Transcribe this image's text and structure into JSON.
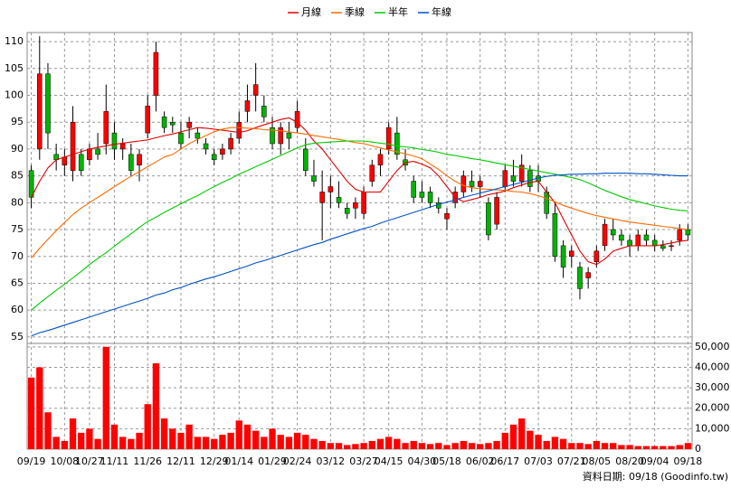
{
  "chart_data": {
    "type": "candlestick",
    "categories": [
      "09/19",
      null,
      null,
      null,
      "10/08",
      null,
      null,
      "10/27",
      null,
      null,
      "11/11",
      null,
      null,
      null,
      "11/26",
      null,
      null,
      null,
      "12/11",
      null,
      null,
      null,
      "12/29",
      null,
      null,
      "01/14",
      null,
      null,
      null,
      "01/29",
      null,
      null,
      "02/24",
      null,
      null,
      null,
      "03/12",
      null,
      null,
      null,
      "03/27",
      null,
      null,
      "04/15",
      null,
      null,
      null,
      "04/30",
      null,
      null,
      "05/18",
      null,
      null,
      null,
      "06/02",
      null,
      null,
      "06/17",
      null,
      null,
      null,
      "07/03",
      null,
      null,
      null,
      "07/21",
      null,
      null,
      "08/05",
      null,
      null,
      null,
      "08/20",
      null,
      null,
      "09/04",
      null,
      null,
      null,
      "09/18"
    ],
    "ohlc": {
      "up_color": "#ff0000",
      "down_color": "#00b400",
      "open": [
        86,
        90,
        104,
        89,
        87,
        86,
        89,
        88,
        90,
        91,
        93,
        90,
        89,
        87,
        93,
        100,
        96,
        95,
        93,
        94,
        93,
        91,
        89,
        89,
        90,
        92,
        97,
        100,
        98,
        94,
        91,
        93,
        94,
        90,
        85,
        80,
        82,
        81,
        79,
        79,
        78,
        84,
        87,
        90,
        93,
        88,
        84,
        82,
        82,
        80,
        77,
        80,
        82,
        84,
        83,
        80,
        76,
        83,
        85,
        84,
        86,
        85,
        82,
        78,
        72,
        70,
        68,
        66,
        69,
        72,
        75,
        74,
        73,
        72,
        74,
        73,
        72,
        72,
        73,
        75
      ],
      "high": [
        87,
        111,
        106,
        91,
        90,
        98,
        90,
        91,
        93,
        102,
        95,
        92,
        91,
        90,
        100,
        110,
        97,
        96,
        95,
        96,
        94,
        92,
        90,
        91,
        93,
        97,
        102,
        106,
        100,
        96,
        95,
        95,
        99,
        92,
        88,
        86,
        85,
        84,
        80,
        81,
        83,
        88,
        90,
        95,
        96,
        90,
        85,
        84,
        83,
        81,
        79,
        83,
        86,
        86,
        85,
        81,
        82,
        87,
        88,
        89,
        87,
        87,
        83,
        80,
        73,
        72,
        69,
        68,
        72,
        77,
        77,
        75,
        74,
        75,
        75,
        74,
        73,
        73,
        76,
        76
      ],
      "low": [
        79,
        88,
        90,
        86,
        85,
        84,
        85,
        87,
        88,
        89,
        88,
        88,
        85,
        84,
        92,
        97,
        93,
        93,
        90,
        92,
        91,
        89,
        87,
        88,
        89,
        91,
        95,
        97,
        95,
        90,
        89,
        90,
        93,
        85,
        83,
        73,
        79,
        79,
        77,
        77,
        77,
        83,
        85,
        89,
        88,
        86,
        80,
        80,
        79,
        78,
        75,
        79,
        81,
        82,
        81,
        73,
        75,
        82,
        83,
        83,
        82,
        82,
        77,
        69,
        66,
        68,
        62,
        64,
        68,
        71,
        73,
        72,
        70,
        71,
        72,
        71,
        71,
        71,
        72,
        73
      ],
      "close": [
        81,
        104,
        93,
        88,
        88.5,
        95,
        86,
        90,
        89,
        97,
        90,
        91,
        86,
        89,
        98,
        108,
        94,
        94.5,
        91,
        95,
        92,
        90,
        88,
        90,
        92,
        95,
        99,
        102,
        96,
        91,
        94,
        92,
        97,
        86,
        84,
        82,
        83,
        80,
        78,
        80,
        82,
        87,
        89,
        94,
        89,
        87,
        81,
        81,
        80,
        79,
        78,
        82,
        85,
        83,
        84,
        74,
        81,
        86,
        84,
        87,
        83,
        84,
        78,
        70,
        68,
        71,
        64,
        67,
        71,
        76,
        74,
        73,
        72,
        74,
        73,
        72,
        71.5,
        72,
        75,
        74
      ]
    },
    "series": [
      {
        "name": "月線",
        "color": "#e00000",
        "values": [
          81,
          84,
          86.5,
          88,
          88.5,
          89,
          89.5,
          90,
          90.3,
          90.6,
          90.9,
          91.1,
          91.3,
          91.5,
          91.7,
          92.1,
          92.5,
          92.8,
          93.2,
          93.6,
          94,
          93.9,
          93.7,
          93.5,
          93.3,
          93.1,
          93.4,
          94,
          94.5,
          95,
          95.5,
          95.8,
          95,
          93.5,
          91.5,
          90,
          88,
          86,
          84,
          82.5,
          82,
          82,
          82,
          84,
          86,
          87.5,
          87.7,
          87.2,
          86.5,
          85,
          83,
          81,
          80.2,
          80.6,
          81,
          81.5,
          81.8,
          82.2,
          82.8,
          83.3,
          83.8,
          84,
          82,
          80,
          77,
          74,
          71,
          69,
          68.5,
          69.5,
          71,
          71.5,
          72,
          72,
          72,
          72,
          72.2,
          72.5,
          72.8,
          73
        ]
      },
      {
        "name": "季線",
        "color": "#ff6a00",
        "values": [
          69.7,
          71.5,
          73.2,
          74.8,
          76.3,
          77.8,
          79,
          80,
          81,
          82,
          83,
          84,
          84.9,
          85.8,
          86.7,
          87.6,
          88.5,
          89,
          90,
          91,
          91.8,
          92.5,
          93.2,
          93.7,
          94,
          94,
          93.9,
          93.8,
          93.6,
          93.5,
          93.4,
          93.2,
          93,
          92.8,
          92.5,
          92.3,
          92,
          91.8,
          91.5,
          91.2,
          91,
          90.6,
          90.2,
          89.8,
          89.5,
          89.1,
          88.7,
          88.2,
          87.2,
          86.2,
          85,
          84,
          83.2,
          82.8,
          82.6,
          82.5,
          82.4,
          82.3,
          82.1,
          82,
          81.7,
          81.3,
          80.8,
          80.2,
          79.5,
          79,
          78.5,
          78,
          77.6,
          77.3,
          77,
          76.7,
          76.4,
          76.2,
          76,
          75.8,
          75.6,
          75.4,
          75.2,
          75
        ]
      },
      {
        "name": "半年",
        "color": "#00cc00",
        "values": [
          60,
          61.3,
          62.5,
          63.7,
          64.8,
          66,
          67.2,
          68.5,
          69.6,
          70.7,
          71.9,
          73.1,
          74.2,
          75.4,
          76.5,
          77.3,
          78.2,
          79,
          79.8,
          80.6,
          81.3,
          82.2,
          83,
          83.8,
          84.5,
          85.3,
          86,
          86.7,
          87.4,
          88.1,
          88.8,
          89.5,
          90.2,
          90.8,
          91.1,
          91.2,
          91.3,
          91.4,
          91.5,
          91.5,
          91.5,
          91.3,
          91.1,
          90.9,
          90.6,
          90.4,
          90.2,
          89.9,
          89.7,
          89.4,
          89,
          88.8,
          88.5,
          88.2,
          88,
          87.7,
          87.4,
          87.1,
          86.8,
          86.5,
          86.2,
          85.9,
          85.6,
          85.3,
          85,
          84.7,
          84.3,
          83.7,
          83,
          82.3,
          81.7,
          81.1,
          80.6,
          80.2,
          79.8,
          79.4,
          79.1,
          78.8,
          78.6,
          78.5
        ]
      },
      {
        "name": "年線",
        "color": "#0050c8",
        "values": [
          55.2,
          55.8,
          56.2,
          56.7,
          57.2,
          57.7,
          58.2,
          58.7,
          59.2,
          59.7,
          60.2,
          60.7,
          61.2,
          61.7,
          62.2,
          62.8,
          63.2,
          63.8,
          64.2,
          64.8,
          65.3,
          65.8,
          66.2,
          66.7,
          67.2,
          67.7,
          68.2,
          68.8,
          69.2,
          69.7,
          70.2,
          70.7,
          71.2,
          71.7,
          72.2,
          72.6,
          73.2,
          73.7,
          74.2,
          74.7,
          75.2,
          75.6,
          76.2,
          76.7,
          77.2,
          77.7,
          78.2,
          78.7,
          79.2,
          79.7,
          80.1,
          80.5,
          81,
          81.4,
          81.8,
          82.2,
          82.6,
          83,
          83.4,
          83.8,
          84.2,
          84.6,
          84.9,
          85.1,
          85.2,
          85.3,
          85.3,
          85.4,
          85.4,
          85.5,
          85.5,
          85.5,
          85.5,
          85.4,
          85.4,
          85.3,
          85.2,
          85.1,
          85,
          85
        ]
      }
    ],
    "volume": {
      "color": "#ff0000",
      "axis": "y2",
      "values": [
        35000,
        40000,
        18000,
        6000,
        4000,
        15000,
        8000,
        10000,
        5000,
        50000,
        12000,
        6000,
        5000,
        8000,
        22000,
        42000,
        15000,
        10000,
        8000,
        12000,
        6000,
        6000,
        5000,
        7000,
        8000,
        14000,
        12000,
        9000,
        6000,
        10000,
        7000,
        6000,
        8000,
        7000,
        5000,
        4000,
        3000,
        3000,
        2000,
        2500,
        3000,
        4000,
        5000,
        6000,
        5000,
        3000,
        4000,
        3000,
        2500,
        3000,
        2000,
        3000,
        4000,
        3000,
        2500,
        3000,
        4000,
        8000,
        12000,
        15000,
        9000,
        7000,
        4000,
        6000,
        5000,
        3000,
        3000,
        2500,
        4000,
        3000,
        3000,
        2000,
        2000,
        1500,
        1500,
        1500,
        1500,
        1500,
        2000,
        3000
      ]
    },
    "ylim": [
      53.8,
      111.7
    ],
    "yticks": [
      55,
      60,
      65,
      70,
      75,
      80,
      85,
      90,
      95,
      100,
      105,
      110
    ],
    "y2lim": [
      0,
      51700
    ],
    "y2ticks": [
      0,
      {
        "value": 10000,
        "label": "10,000"
      },
      {
        "value": 20000,
        "label": "20,000"
      },
      {
        "value": 30000,
        "label": "30,000"
      },
      {
        "value": 40000,
        "label": "40,000"
      },
      {
        "value": 50000,
        "label": "50,000"
      }
    ],
    "grid": true,
    "legend": "top",
    "footer": "資料日期: 09/18 (Goodinfo.tw)"
  }
}
